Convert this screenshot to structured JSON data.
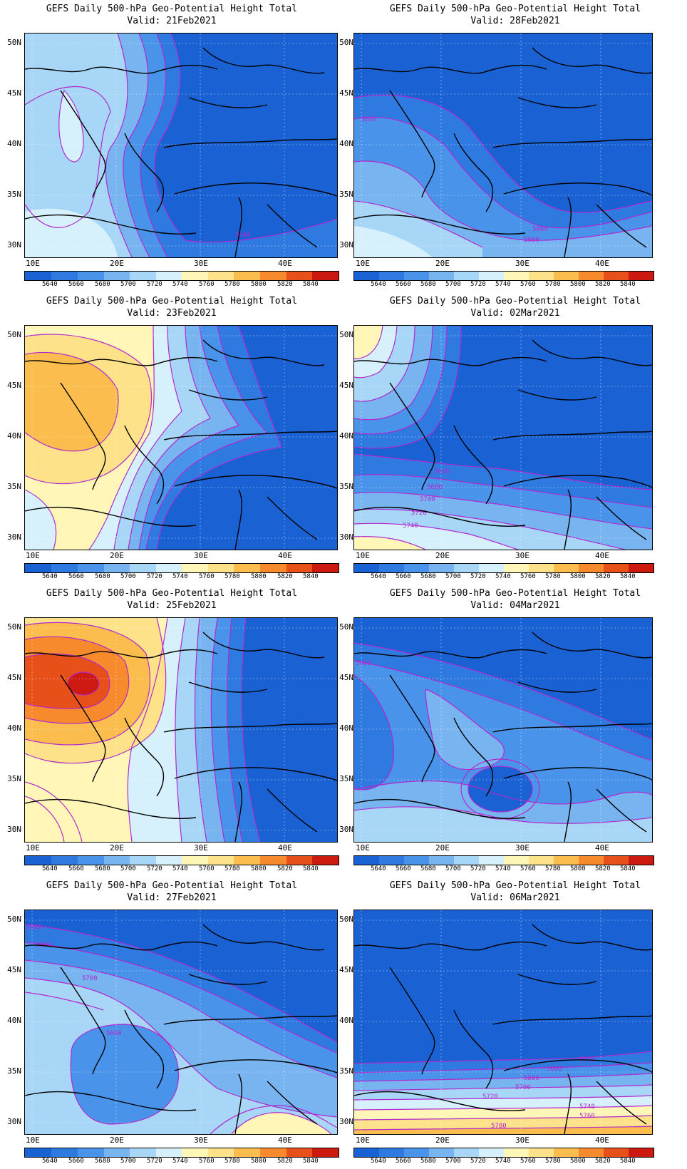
{
  "colorbar": {
    "labels": [
      "5640",
      "5660",
      "5680",
      "5700",
      "5720",
      "5740",
      "5760",
      "5780",
      "5800",
      "5820",
      "5840"
    ],
    "colors": [
      "#1a62d4",
      "#2f7ae0",
      "#4a93ea",
      "#78b4f0",
      "#a8d6f7",
      "#d6f1fb",
      "#fff6b8",
      "#fde28a",
      "#fbbd4e",
      "#f68a2c",
      "#e8501a",
      "#cc1a10"
    ],
    "contour_color": "#b229cf"
  },
  "axes": {
    "lat_labels": [
      "50N",
      "45N",
      "40N",
      "35N",
      "30N"
    ],
    "lon_labels": [
      "10E",
      "20E",
      "30E",
      "40E"
    ]
  },
  "panels": [
    {
      "id": "21feb",
      "title": "GEFS Daily 500-hPa Geo-Potential Height Total",
      "valid": "Valid: 21Feb2021",
      "contour_labels": [
        "5640"
      ]
    },
    {
      "id": "28feb",
      "title": "GEFS Daily 500-hPa Geo-Potential Height Total",
      "valid": "Valid: 28Feb2021",
      "contour_labels": [
        "5660",
        "5660",
        "5680"
      ]
    },
    {
      "id": "23feb",
      "title": "GEFS Daily 500-hPa Geo-Potential Height Total",
      "valid": "Valid: 23Feb2021",
      "contour_labels": []
    },
    {
      "id": "02mar",
      "title": "GEFS Daily 500-hPa Geo-Potential Height Total",
      "valid": "Valid: 02Mar2021",
      "contour_labels": [
        "5660",
        "5680",
        "5700",
        "5720",
        "5740"
      ]
    },
    {
      "id": "25feb",
      "title": "GEFS Daily 500-hPa Geo-Potential Height Total",
      "valid": "Valid: 25Feb2021",
      "contour_labels": []
    },
    {
      "id": "04mar",
      "title": "GEFS Daily 500-hPa Geo-Potential Height Total",
      "valid": "Valid: 04Mar2021",
      "contour_labels": [
        "5660"
      ]
    },
    {
      "id": "27feb",
      "title": "GEFS Daily 500-hPa Geo-Potential Height Total",
      "valid": "Valid: 27Feb2021",
      "contour_labels": [
        "5660",
        "5680",
        "5700",
        "5680"
      ]
    },
    {
      "id": "06mar",
      "title": "GEFS Daily 500-hPa Geo-Potential Height Total",
      "valid": "Valid: 06Mar2021",
      "contour_labels": [
        "5660",
        "5680",
        "5700",
        "5720",
        "5740",
        "5760",
        "5780",
        "5640"
      ]
    }
  ]
}
